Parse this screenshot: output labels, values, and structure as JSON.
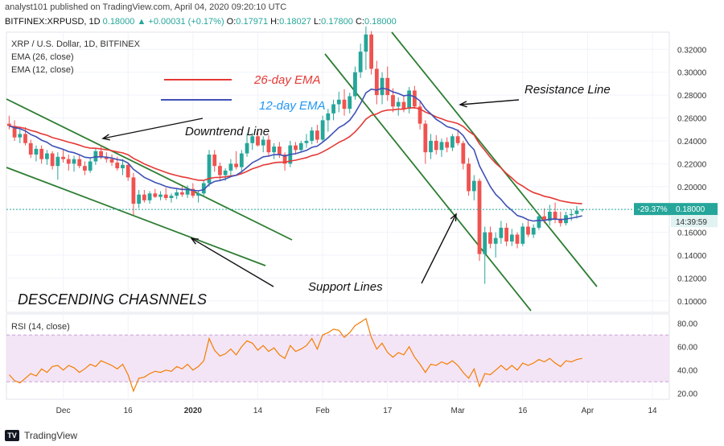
{
  "header": {
    "published": "analyst101 published on TradingView.com, April 04, 2020 09:20:10 UTC",
    "symbol": "BITFINEX:XRPUSD, 1D",
    "ohlc_price": "0.18000",
    "change": "+0.00031 (+0.17%)",
    "o_label": "O:",
    "o": "0.17971",
    "h_label": "H:",
    "h": "0.18027",
    "l_label": "L:",
    "l": "0.17800",
    "c_label": "C:",
    "c": "0.18000"
  },
  "footer": {
    "brand": "TradingView",
    "logo": "TV"
  },
  "colors": {
    "up": "#26a69a",
    "down": "#ef5350",
    "ema26": "#e53935",
    "ema12": "#3f51b5",
    "trendline": "#2e7d32",
    "rsi": "#f57c00",
    "rsi_band": "#f3e5f5"
  },
  "chart_data": [
    {
      "type": "candlestick",
      "title": "XRP / U.S. Dollar, 1D, BITFINEX",
      "indicators": [
        "EMA (26, close)",
        "EMA (12, close)"
      ],
      "ylim": [
        0.09,
        0.335
      ],
      "yticks": [
        "0.32000",
        "0.30000",
        "0.28000",
        "0.26000",
        "0.24000",
        "0.22000",
        "0.20000",
        "0.16000",
        "0.14000",
        "0.12000",
        "0.10000"
      ],
      "xticks": [
        "Dec",
        "16",
        "2020",
        "14",
        "Feb",
        "17",
        "Mar",
        "16",
        "Apr",
        "14"
      ],
      "price_label": "0.18000",
      "change_label": "-29.37%",
      "countdown_label": "14:39:59",
      "current_price": 0.18,
      "candles": [
        [
          0.255,
          0.262,
          0.25,
          0.253
        ],
        [
          0.253,
          0.258,
          0.24,
          0.243
        ],
        [
          0.243,
          0.25,
          0.238,
          0.246
        ],
        [
          0.246,
          0.252,
          0.236,
          0.238
        ],
        [
          0.238,
          0.241,
          0.225,
          0.228
        ],
        [
          0.228,
          0.236,
          0.222,
          0.233
        ],
        [
          0.233,
          0.236,
          0.22,
          0.224
        ],
        [
          0.224,
          0.232,
          0.219,
          0.229
        ],
        [
          0.229,
          0.231,
          0.215,
          0.218
        ],
        [
          0.218,
          0.23,
          0.206,
          0.226
        ],
        [
          0.226,
          0.233,
          0.221,
          0.224
        ],
        [
          0.224,
          0.228,
          0.214,
          0.22
        ],
        [
          0.22,
          0.227,
          0.213,
          0.224
        ],
        [
          0.224,
          0.228,
          0.216,
          0.218
        ],
        [
          0.218,
          0.222,
          0.21,
          0.214
        ],
        [
          0.214,
          0.225,
          0.212,
          0.222
        ],
        [
          0.222,
          0.234,
          0.219,
          0.231
        ],
        [
          0.231,
          0.236,
          0.224,
          0.226
        ],
        [
          0.226,
          0.23,
          0.221,
          0.224
        ],
        [
          0.224,
          0.228,
          0.218,
          0.221
        ],
        [
          0.221,
          0.226,
          0.214,
          0.216
        ],
        [
          0.216,
          0.224,
          0.21,
          0.219
        ],
        [
          0.219,
          0.221,
          0.205,
          0.208
        ],
        [
          0.208,
          0.212,
          0.175,
          0.185
        ],
        [
          0.185,
          0.197,
          0.181,
          0.193
        ],
        [
          0.193,
          0.197,
          0.186,
          0.188
        ],
        [
          0.188,
          0.196,
          0.185,
          0.194
        ],
        [
          0.194,
          0.198,
          0.19,
          0.191
        ],
        [
          0.191,
          0.196,
          0.188,
          0.193
        ],
        [
          0.193,
          0.199,
          0.188,
          0.19
        ],
        [
          0.19,
          0.194,
          0.186,
          0.192
        ],
        [
          0.192,
          0.198,
          0.189,
          0.195
        ],
        [
          0.195,
          0.2,
          0.191,
          0.193
        ],
        [
          0.193,
          0.201,
          0.19,
          0.198
        ],
        [
          0.198,
          0.203,
          0.19,
          0.192
        ],
        [
          0.192,
          0.196,
          0.186,
          0.194
        ],
        [
          0.194,
          0.205,
          0.192,
          0.203
        ],
        [
          0.203,
          0.232,
          0.2,
          0.228
        ],
        [
          0.228,
          0.232,
          0.213,
          0.218
        ],
        [
          0.218,
          0.221,
          0.205,
          0.21
        ],
        [
          0.21,
          0.216,
          0.205,
          0.214
        ],
        [
          0.214,
          0.224,
          0.209,
          0.22
        ],
        [
          0.22,
          0.231,
          0.215,
          0.217
        ],
        [
          0.217,
          0.232,
          0.212,
          0.229
        ],
        [
          0.229,
          0.246,
          0.226,
          0.238
        ],
        [
          0.238,
          0.247,
          0.232,
          0.244
        ],
        [
          0.244,
          0.248,
          0.235,
          0.236
        ],
        [
          0.236,
          0.244,
          0.23,
          0.241
        ],
        [
          0.241,
          0.245,
          0.226,
          0.23
        ],
        [
          0.23,
          0.238,
          0.224,
          0.235
        ],
        [
          0.235,
          0.239,
          0.225,
          0.228
        ],
        [
          0.228,
          0.23,
          0.214,
          0.22
        ],
        [
          0.22,
          0.24,
          0.217,
          0.236
        ],
        [
          0.236,
          0.239,
          0.228,
          0.232
        ],
        [
          0.232,
          0.24,
          0.23,
          0.238
        ],
        [
          0.238,
          0.246,
          0.234,
          0.24
        ],
        [
          0.24,
          0.252,
          0.237,
          0.249
        ],
        [
          0.249,
          0.254,
          0.238,
          0.241
        ],
        [
          0.241,
          0.262,
          0.239,
          0.258
        ],
        [
          0.258,
          0.268,
          0.248,
          0.264
        ],
        [
          0.264,
          0.276,
          0.258,
          0.272
        ],
        [
          0.272,
          0.283,
          0.265,
          0.276
        ],
        [
          0.276,
          0.285,
          0.262,
          0.268
        ],
        [
          0.268,
          0.282,
          0.264,
          0.279
        ],
        [
          0.279,
          0.305,
          0.276,
          0.3
        ],
        [
          0.3,
          0.325,
          0.295,
          0.318
        ],
        [
          0.318,
          0.34,
          0.302,
          0.333
        ],
        [
          0.333,
          0.336,
          0.298,
          0.303
        ],
        [
          0.303,
          0.31,
          0.272,
          0.28
        ],
        [
          0.28,
          0.3,
          0.272,
          0.295
        ],
        [
          0.295,
          0.305,
          0.275,
          0.28
        ],
        [
          0.28,
          0.286,
          0.265,
          0.27
        ],
        [
          0.27,
          0.278,
          0.262,
          0.274
        ],
        [
          0.274,
          0.28,
          0.265,
          0.268
        ],
        [
          0.268,
          0.287,
          0.264,
          0.284
        ],
        [
          0.284,
          0.288,
          0.268,
          0.27
        ],
        [
          0.27,
          0.274,
          0.25,
          0.255
        ],
        [
          0.255,
          0.258,
          0.22,
          0.23
        ],
        [
          0.23,
          0.246,
          0.224,
          0.24
        ],
        [
          0.24,
          0.245,
          0.228,
          0.232
        ],
        [
          0.232,
          0.242,
          0.226,
          0.239
        ],
        [
          0.239,
          0.243,
          0.23,
          0.234
        ],
        [
          0.234,
          0.246,
          0.231,
          0.244
        ],
        [
          0.244,
          0.25,
          0.236,
          0.238
        ],
        [
          0.238,
          0.24,
          0.215,
          0.22
        ],
        [
          0.22,
          0.225,
          0.192,
          0.196
        ],
        [
          0.196,
          0.21,
          0.188,
          0.205
        ],
        [
          0.205,
          0.207,
          0.135,
          0.141
        ],
        [
          0.141,
          0.165,
          0.115,
          0.16
        ],
        [
          0.16,
          0.165,
          0.146,
          0.15
        ],
        [
          0.15,
          0.16,
          0.138,
          0.155
        ],
        [
          0.155,
          0.17,
          0.15,
          0.164
        ],
        [
          0.164,
          0.168,
          0.148,
          0.152
        ],
        [
          0.152,
          0.163,
          0.148,
          0.158
        ],
        [
          0.158,
          0.16,
          0.146,
          0.15
        ],
        [
          0.15,
          0.168,
          0.148,
          0.165
        ],
        [
          0.165,
          0.17,
          0.156,
          0.158
        ],
        [
          0.158,
          0.167,
          0.155,
          0.164
        ],
        [
          0.164,
          0.176,
          0.162,
          0.174
        ],
        [
          0.174,
          0.181,
          0.168,
          0.17
        ],
        [
          0.17,
          0.184,
          0.166,
          0.178
        ],
        [
          0.178,
          0.186,
          0.168,
          0.172
        ],
        [
          0.172,
          0.178,
          0.165,
          0.168
        ],
        [
          0.168,
          0.178,
          0.166,
          0.175
        ],
        [
          0.175,
          0.18,
          0.17,
          0.176
        ],
        [
          0.176,
          0.183,
          0.172,
          0.179
        ],
        [
          0.17971,
          0.18027,
          0.178,
          0.18
        ]
      ],
      "annotations": [
        "26-day EMA",
        "12-day EMA",
        "Downtrend Line",
        "Resistance Line",
        "Support Lines",
        "DESCENDING CHASNNELS"
      ]
    },
    {
      "type": "line",
      "title": "RSI (14, close)",
      "ylim": [
        15,
        88
      ],
      "yticks": [
        "80.00",
        "60.00",
        "40.00",
        "20.00"
      ],
      "band": [
        30,
        70
      ],
      "values": [
        36,
        31,
        29,
        33,
        37,
        35,
        41,
        38,
        43,
        44,
        40,
        44,
        42,
        38,
        41,
        45,
        43,
        48,
        46,
        44,
        41,
        45,
        36,
        22,
        33,
        34,
        37,
        39,
        38,
        40,
        39,
        43,
        41,
        45,
        40,
        43,
        48,
        67,
        57,
        52,
        54,
        58,
        53,
        60,
        65,
        63,
        57,
        61,
        56,
        59,
        53,
        50,
        61,
        56,
        58,
        61,
        67,
        58,
        70,
        72,
        75,
        74,
        68,
        72,
        78,
        81,
        84,
        68,
        58,
        63,
        55,
        51,
        55,
        53,
        60,
        51,
        45,
        38,
        45,
        44,
        47,
        45,
        48,
        44,
        38,
        33,
        41,
        26,
        37,
        36,
        40,
        44,
        40,
        44,
        40,
        46,
        44,
        46,
        49,
        47,
        50,
        46,
        43,
        48,
        47,
        49,
        50
      ]
    }
  ]
}
